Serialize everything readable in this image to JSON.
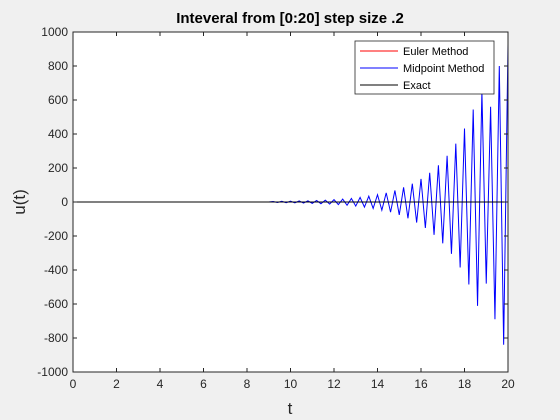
{
  "chart_data": {
    "type": "line",
    "title": "Inteveral from [0:20] step size .2",
    "xlabel": "t",
    "ylabel": "u(t)",
    "xlim": [
      0,
      20
    ],
    "ylim": [
      -1000,
      1000
    ],
    "x_ticks": [
      0,
      2,
      4,
      6,
      8,
      10,
      12,
      14,
      16,
      18,
      20
    ],
    "y_ticks": [
      -1000,
      -800,
      -600,
      -400,
      -200,
      0,
      200,
      400,
      600,
      800,
      1000
    ],
    "grid": false,
    "legend_position": "top-right",
    "series": [
      {
        "name": "Euler Method",
        "color": "#ff0000",
        "values": [
          [
            0,
            0
          ],
          [
            20,
            0
          ]
        ]
      },
      {
        "name": "Midpoint Method",
        "color": "#0000ff",
        "values": [
          [
            0,
            0
          ],
          [
            1,
            0
          ],
          [
            2,
            0
          ],
          [
            3,
            0
          ],
          [
            4,
            0
          ],
          [
            5,
            0
          ],
          [
            6,
            0
          ],
          [
            7,
            0
          ],
          [
            8,
            0
          ],
          [
            9,
            0
          ],
          [
            9.2,
            3
          ],
          [
            9.4,
            -3
          ],
          [
            9.6,
            4
          ],
          [
            9.8,
            -4
          ],
          [
            10,
            5
          ],
          [
            10.2,
            -5
          ],
          [
            10.4,
            6
          ],
          [
            10.6,
            -6
          ],
          [
            10.8,
            7
          ],
          [
            11,
            -8
          ],
          [
            11.2,
            9
          ],
          [
            11.4,
            -10
          ],
          [
            11.6,
            11
          ],
          [
            11.8,
            -12
          ],
          [
            12,
            14
          ],
          [
            12.2,
            -15
          ],
          [
            12.4,
            17
          ],
          [
            12.6,
            -19
          ],
          [
            12.8,
            21
          ],
          [
            13,
            -24
          ],
          [
            13.2,
            27
          ],
          [
            13.4,
            -30
          ],
          [
            13.6,
            34
          ],
          [
            13.8,
            -38
          ],
          [
            14,
            43
          ],
          [
            14.2,
            -48
          ],
          [
            14.4,
            54
          ],
          [
            14.6,
            -60
          ],
          [
            14.8,
            68
          ],
          [
            15,
            -76
          ],
          [
            15.2,
            86
          ],
          [
            15.4,
            -96
          ],
          [
            15.6,
            108
          ],
          [
            15.8,
            -121
          ],
          [
            16,
            136
          ],
          [
            16.2,
            -153
          ],
          [
            16.4,
            172
          ],
          [
            16.6,
            -193
          ],
          [
            16.8,
            216
          ],
          [
            17,
            -243
          ],
          [
            17.2,
            272
          ],
          [
            17.4,
            -305
          ],
          [
            17.6,
            343
          ],
          [
            17.8,
            -385
          ],
          [
            18,
            432
          ],
          [
            18.2,
            -485
          ],
          [
            18.4,
            544
          ],
          [
            18.6,
            -611
          ],
          [
            18.8,
            650
          ],
          [
            19,
            -480
          ],
          [
            19.2,
            560
          ],
          [
            19.4,
            -690
          ],
          [
            19.6,
            800
          ],
          [
            19.8,
            -840
          ],
          [
            20,
            930
          ]
        ]
      },
      {
        "name": "Exact",
        "color": "#000000",
        "values": [
          [
            0,
            0
          ],
          [
            20,
            0
          ]
        ]
      }
    ]
  }
}
